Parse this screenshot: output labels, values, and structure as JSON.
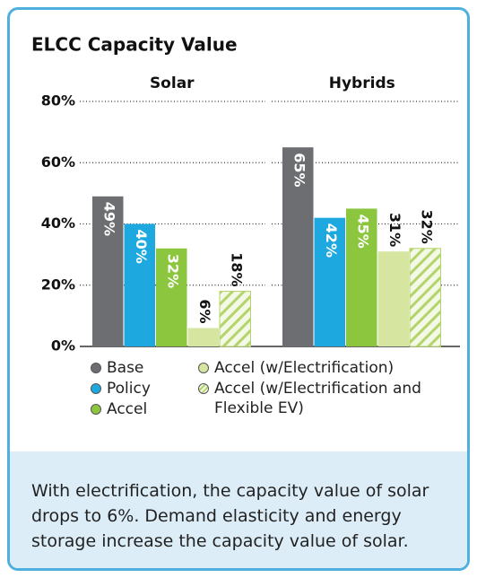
{
  "chart_data": {
    "type": "bar",
    "title": "ELCC Capacity Value",
    "categories": [
      "Solar",
      "Hybrids"
    ],
    "series": [
      {
        "name": "Base",
        "color": "#6d6e71",
        "values": [
          49,
          65
        ],
        "value_labels": [
          "49%",
          "65%"
        ]
      },
      {
        "name": "Policy",
        "color": "#1ea8e0",
        "values": [
          40,
          42
        ],
        "value_labels": [
          "40%",
          "42%"
        ]
      },
      {
        "name": "Accel",
        "color": "#8cc63f",
        "values": [
          32,
          45
        ],
        "value_labels": [
          "32%",
          "45%"
        ]
      },
      {
        "name": "Accel (w/Electrification)",
        "color": "#d6e5a0",
        "values": [
          6,
          31
        ],
        "value_labels": [
          "6%",
          "31%"
        ]
      },
      {
        "name": "Accel (w/Electrification and Flexible EV)",
        "color": "#b3d46a",
        "hatch": true,
        "values": [
          18,
          32
        ],
        "value_labels": [
          "18%",
          "32%"
        ]
      }
    ],
    "ylim": [
      0,
      80
    ],
    "yticks": [
      {
        "value": 0,
        "label": "0%"
      },
      {
        "value": 20,
        "label": "20%"
      },
      {
        "value": 40,
        "label": "40%"
      },
      {
        "value": 60,
        "label": "60%"
      },
      {
        "value": 80,
        "label": "80%"
      }
    ],
    "grid": true
  },
  "caption": "With electrification, the capacity value of solar drops to 6%. Demand elasticity and energy storage increase the capacity value of solar."
}
